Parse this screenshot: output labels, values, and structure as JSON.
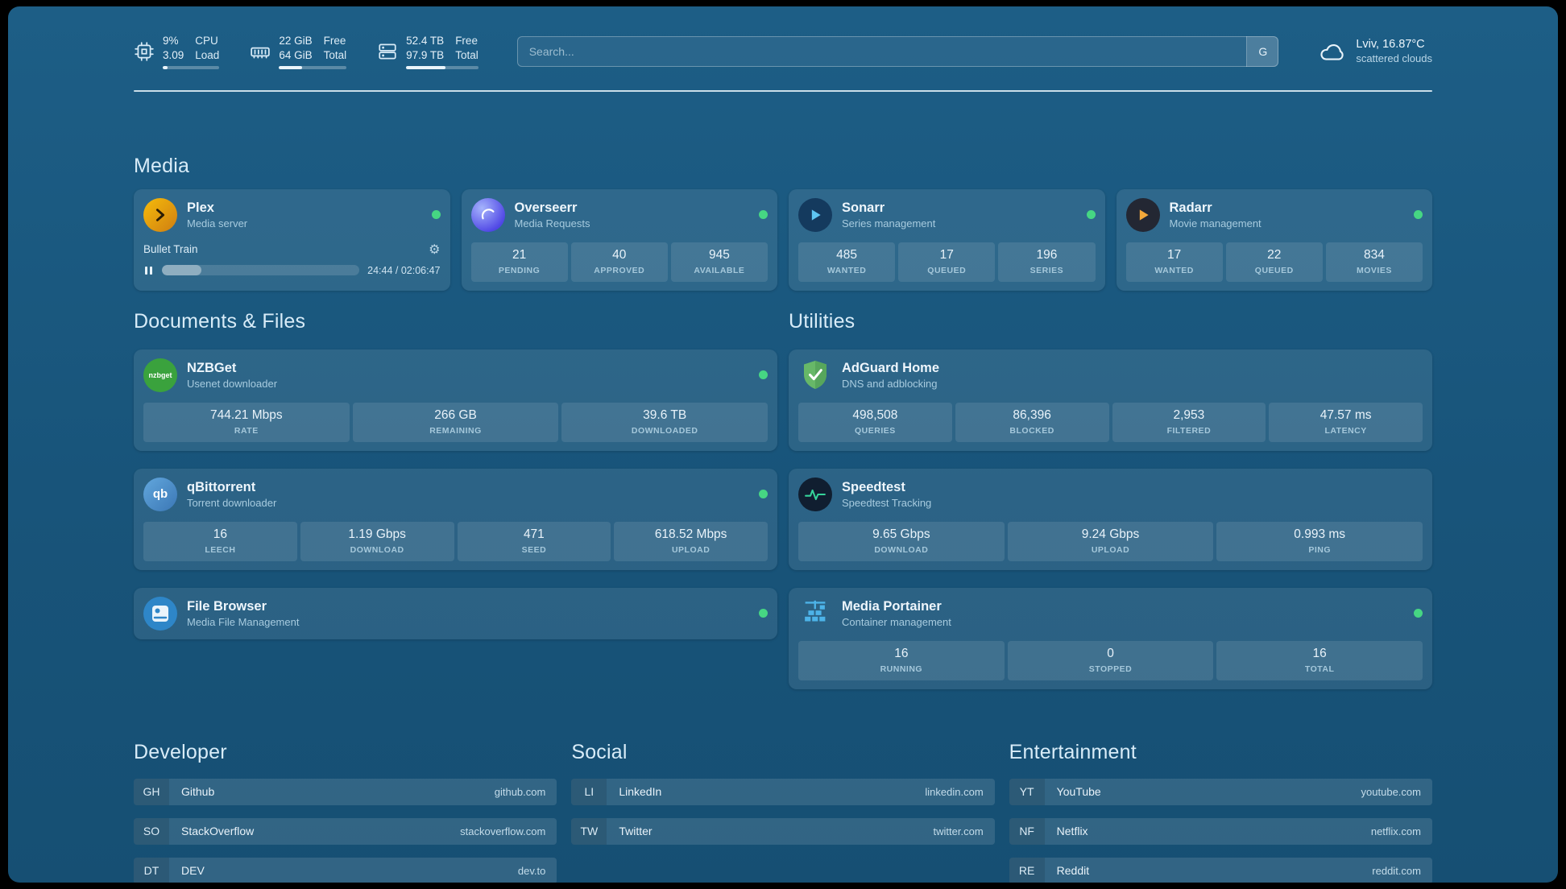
{
  "colors": {
    "background": "#18547a",
    "accent_green": "#46d683",
    "plex_amber": "#e8a00d",
    "radarr_amber": "#f3a83a",
    "sonarr_blue": "#5ec6f2",
    "nzbget_green": "#3aa23d",
    "qbittorrent_blue": "#4f9bd8",
    "adguard_green": "#67b868",
    "speedtest_green": "#35d49a",
    "portainer_blue": "#4db3e8"
  },
  "topbar": {
    "cpu": {
      "line1": "9%",
      "line2": "3.09",
      "label1": "CPU",
      "label2": "Load",
      "progress": 9
    },
    "memory": {
      "line1": "22 GiB",
      "line2": "64 GiB",
      "label1": "Free",
      "label2": "Total",
      "progress": 34
    },
    "disk": {
      "line1": "52.4 TB",
      "line2": "97.9 TB",
      "label1": "Free",
      "label2": "Total",
      "progress": 54
    },
    "search": {
      "placeholder": "Search...",
      "provider_button": "G"
    },
    "weather": {
      "location": "Lviv, 16.87°C",
      "condition": "scattered clouds"
    }
  },
  "sections": {
    "media": "Media",
    "documents": "Documents & Files",
    "utilities": "Utilities"
  },
  "services": {
    "plex": {
      "name": "Plex",
      "description": "Media server",
      "status": "online",
      "now_playing": "Bullet Train",
      "time": "24:44 / 02:06:47",
      "progress": 20
    },
    "overseerr": {
      "name": "Overseerr",
      "description": "Media Requests",
      "status": "online",
      "stats": [
        {
          "value": "21",
          "label": "PENDING"
        },
        {
          "value": "40",
          "label": "APPROVED"
        },
        {
          "value": "945",
          "label": "AVAILABLE"
        }
      ]
    },
    "sonarr": {
      "name": "Sonarr",
      "description": "Series management",
      "status": "online",
      "stats": [
        {
          "value": "485",
          "label": "WANTED"
        },
        {
          "value": "17",
          "label": "QUEUED"
        },
        {
          "value": "196",
          "label": "SERIES"
        }
      ]
    },
    "radarr": {
      "name": "Radarr",
      "description": "Movie management",
      "status": "online",
      "stats": [
        {
          "value": "17",
          "label": "WANTED"
        },
        {
          "value": "22",
          "label": "QUEUED"
        },
        {
          "value": "834",
          "label": "MOVIES"
        }
      ]
    },
    "nzbget": {
      "name": "NZBGet",
      "description": "Usenet downloader",
      "status": "online",
      "stats": [
        {
          "value": "744.21 Mbps",
          "label": "RATE"
        },
        {
          "value": "266 GB",
          "label": "REMAINING"
        },
        {
          "value": "39.6 TB",
          "label": "DOWNLOADED"
        }
      ]
    },
    "qbittorrent": {
      "name": "qBittorrent",
      "description": "Torrent downloader",
      "status": "online",
      "stats": [
        {
          "value": "16",
          "label": "LEECH"
        },
        {
          "value": "1.19 Gbps",
          "label": "DOWNLOAD"
        },
        {
          "value": "471",
          "label": "SEED"
        },
        {
          "value": "618.52 Mbps",
          "label": "UPLOAD"
        }
      ]
    },
    "filebrowser": {
      "name": "File Browser",
      "description": "Media File Management",
      "status": "online"
    },
    "adguard": {
      "name": "AdGuard Home",
      "description": "DNS and adblocking",
      "stats": [
        {
          "value": "498,508",
          "label": "QUERIES"
        },
        {
          "value": "86,396",
          "label": "BLOCKED"
        },
        {
          "value": "2,953",
          "label": "FILTERED"
        },
        {
          "value": "47.57 ms",
          "label": "LATENCY"
        }
      ]
    },
    "speedtest": {
      "name": "Speedtest",
      "description": "Speedtest Tracking",
      "stats": [
        {
          "value": "9.65 Gbps",
          "label": "DOWNLOAD"
        },
        {
          "value": "9.24 Gbps",
          "label": "UPLOAD"
        },
        {
          "value": "0.993 ms",
          "label": "PING"
        }
      ]
    },
    "portainer": {
      "name": "Media Portainer",
      "description": "Container management",
      "status": "online",
      "stats": [
        {
          "value": "16",
          "label": "RUNNING"
        },
        {
          "value": "0",
          "label": "STOPPED"
        },
        {
          "value": "16",
          "label": "TOTAL"
        }
      ]
    }
  },
  "bookmarks": {
    "developer": {
      "title": "Developer",
      "items": [
        {
          "abbr": "GH",
          "name": "Github",
          "domain": "github.com"
        },
        {
          "abbr": "SO",
          "name": "StackOverflow",
          "domain": "stackoverflow.com"
        },
        {
          "abbr": "DT",
          "name": "DEV",
          "domain": "dev.to"
        }
      ]
    },
    "social": {
      "title": "Social",
      "items": [
        {
          "abbr": "LI",
          "name": "LinkedIn",
          "domain": "linkedin.com"
        },
        {
          "abbr": "TW",
          "name": "Twitter",
          "domain": "twitter.com"
        }
      ]
    },
    "entertainment": {
      "title": "Entertainment",
      "items": [
        {
          "abbr": "YT",
          "name": "YouTube",
          "domain": "youtube.com"
        },
        {
          "abbr": "NF",
          "name": "Netflix",
          "domain": "netflix.com"
        },
        {
          "abbr": "RE",
          "name": "Reddit",
          "domain": "reddit.com"
        }
      ]
    }
  },
  "icons": {
    "gear": "⚙"
  }
}
